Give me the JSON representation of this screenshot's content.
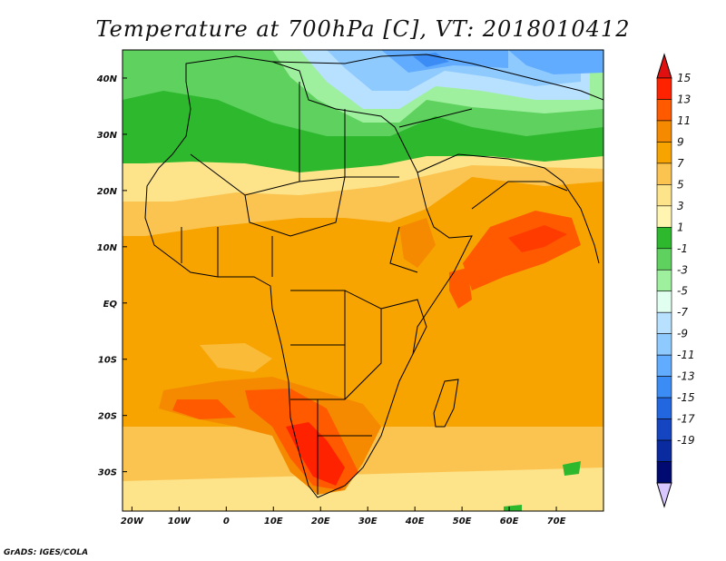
{
  "title": "Temperature at 700hPa [C], VT: 2018010412",
  "credit": "GrADS: IGES/COLA",
  "map": {
    "lon_range": [
      -22,
      80
    ],
    "lat_range": [
      -37,
      45
    ],
    "lon_ticks": [
      {
        "value": -20,
        "label": "20W"
      },
      {
        "value": -10,
        "label": "10W"
      },
      {
        "value": 0,
        "label": "0"
      },
      {
        "value": 10,
        "label": "10E"
      },
      {
        "value": 20,
        "label": "20E"
      },
      {
        "value": 30,
        "label": "30E"
      },
      {
        "value": 40,
        "label": "40E"
      },
      {
        "value": 50,
        "label": "50E"
      },
      {
        "value": 60,
        "label": "60E"
      },
      {
        "value": 70,
        "label": "70E"
      }
    ],
    "lat_ticks": [
      {
        "value": 40,
        "label": "40N"
      },
      {
        "value": 30,
        "label": "30N"
      },
      {
        "value": 20,
        "label": "20N"
      },
      {
        "value": 10,
        "label": "10N"
      },
      {
        "value": 0,
        "label": "EQ"
      },
      {
        "value": -10,
        "label": "10S"
      },
      {
        "value": -20,
        "label": "20S"
      },
      {
        "value": -30,
        "label": "30S"
      }
    ]
  },
  "colorbar": {
    "labels": [
      "15",
      "13",
      "11",
      "9",
      "7",
      "5",
      "3",
      "1",
      "-1",
      "-3",
      "-5",
      "-7",
      "-9",
      "-11",
      "-13",
      "-15",
      "-17",
      "-19"
    ],
    "colors_top_to_bottom": [
      "#ff2200",
      "#ff5a00",
      "#f58a00",
      "#f7a300",
      "#fbc450",
      "#fde38a",
      "#fff5b0",
      "#2eb82e",
      "#5fd15f",
      "#9ef09e",
      "#e0fff0",
      "#b8e0ff",
      "#8fcaff",
      "#62acff",
      "#3c8cf5",
      "#2266e0",
      "#1545c0",
      "#0a2aa0",
      "#000a70"
    ],
    "top_color": "#e01010",
    "bottom_color": "#d8c8ff"
  }
}
